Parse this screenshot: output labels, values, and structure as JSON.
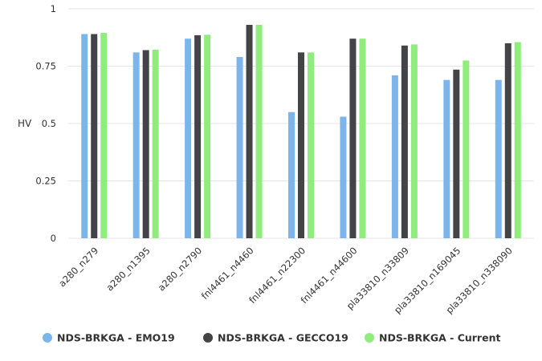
{
  "chart_data": {
    "type": "bar",
    "title": "",
    "ylabel": "HV",
    "xlabel": "",
    "ylim": [
      0,
      1
    ],
    "yticks": [
      0,
      0.25,
      0.5,
      0.75,
      1
    ],
    "ytick_labels": [
      "0",
      "0.25",
      "0.5",
      "0.75",
      "1"
    ],
    "grid": true,
    "legend_position": "bottom",
    "categories": [
      "a280_n279",
      "a280_n1395",
      "a280_n2790",
      "fnl4461_n4460",
      "fnl4461_n22300",
      "fnl4461_n44600",
      "pla33810_n33809",
      "pla33810_n169045",
      "pla33810_n338090"
    ],
    "series": [
      {
        "name": "NDS-BRKGA - EMO19",
        "color": "#7cb5ec",
        "values": [
          0.89,
          0.81,
          0.87,
          0.79,
          0.55,
          0.53,
          0.71,
          0.69,
          0.69
        ]
      },
      {
        "name": "NDS-BRKGA - GECCO19",
        "color": "#434348",
        "values": [
          0.89,
          0.82,
          0.885,
          0.93,
          0.81,
          0.87,
          0.84,
          0.735,
          0.85
        ]
      },
      {
        "name": "NDS-BRKGA - Current",
        "color": "#90ed7d",
        "values": [
          0.895,
          0.822,
          0.887,
          0.93,
          0.81,
          0.87,
          0.845,
          0.775,
          0.855
        ]
      }
    ]
  }
}
